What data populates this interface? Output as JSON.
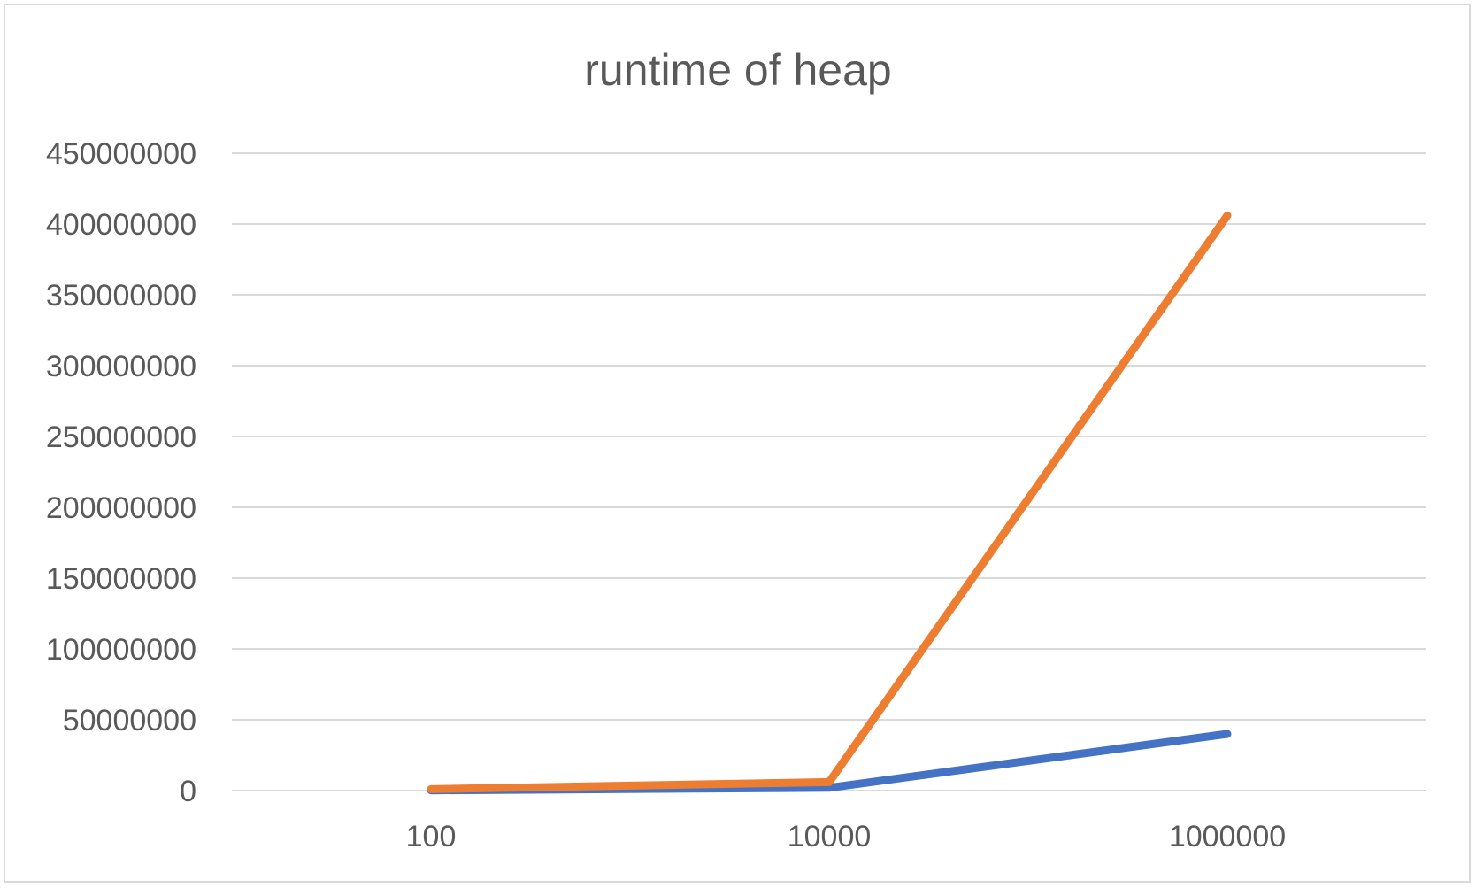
{
  "chart_data": {
    "type": "line",
    "title": "runtime of heap",
    "xlabel": "",
    "ylabel": "",
    "categories": [
      "100",
      "10000",
      "1000000"
    ],
    "ylim": [
      0,
      450000000
    ],
    "yticks": [
      0,
      50000000,
      100000000,
      150000000,
      200000000,
      250000000,
      300000000,
      350000000,
      400000000,
      450000000
    ],
    "grid": true,
    "legend": "none",
    "series": [
      {
        "color": "#4472c4",
        "values": [
          200000,
          2000000,
          40000000
        ]
      },
      {
        "color": "#ed7d31",
        "values": [
          1000000,
          6000000,
          406000000
        ]
      }
    ]
  }
}
